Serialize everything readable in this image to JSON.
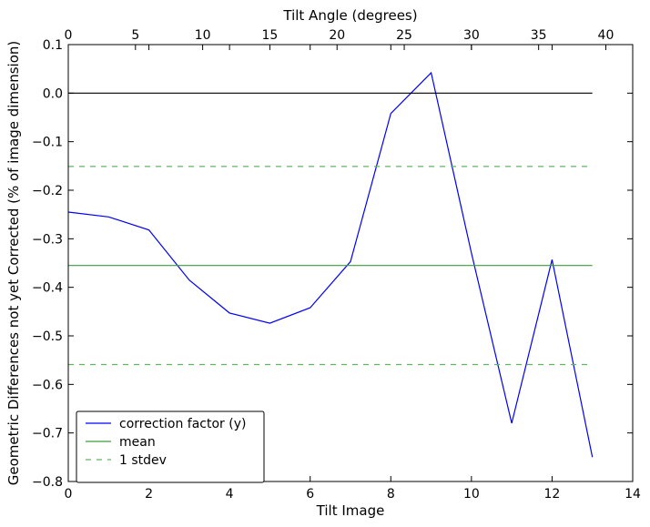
{
  "chart_data": {
    "type": "line",
    "xlabel": "Tilt Image",
    "ylabel": "Geometric Differences not yet Corrected (% of image dimension)",
    "x2label": "Tilt Angle (degrees)",
    "xlim": [
      0,
      14
    ],
    "ylim": [
      -0.8,
      0.1
    ],
    "x2lim": [
      0,
      42
    ],
    "xticks": [
      "0",
      "2",
      "4",
      "6",
      "8",
      "10",
      "12",
      "14"
    ],
    "yticks": [
      "0.1",
      "0.0",
      "−0.1",
      "−0.2",
      "−0.3",
      "−0.4",
      "−0.5",
      "−0.6",
      "−0.7",
      "−0.8"
    ],
    "x2ticks": [
      "0",
      "5",
      "10",
      "15",
      "20",
      "25",
      "30",
      "35",
      "40"
    ],
    "grid": false,
    "legend_position": "lower-left",
    "series": [
      {
        "name": "correction factor (y)",
        "color": "#0000ff",
        "style": "solid",
        "x": [
          0,
          1,
          2,
          3,
          4,
          5,
          6,
          7,
          8,
          9,
          10,
          11,
          12,
          13
        ],
        "y": [
          -0.245,
          -0.255,
          -0.282,
          -0.385,
          -0.453,
          -0.474,
          -0.442,
          -0.347,
          -0.042,
          0.042,
          -0.33,
          -0.68,
          -0.343,
          -0.75
        ]
      },
      {
        "name": "mean",
        "color": "#3a9f3a",
        "style": "solid",
        "x": [
          0,
          13
        ],
        "y": [
          -0.355,
          -0.355
        ]
      },
      {
        "name": "1 stdev",
        "color": "#62b462",
        "style": "dashed",
        "x": [
          0,
          13
        ],
        "y": [
          -0.151,
          -0.151
        ]
      },
      {
        "name": "",
        "color": "#62b462",
        "style": "dashed",
        "x": [
          0,
          13
        ],
        "y": [
          -0.559,
          -0.559
        ]
      },
      {
        "name": "",
        "color": "#000000",
        "style": "solid",
        "x": [
          0,
          13
        ],
        "y": [
          0.0,
          0.0
        ]
      }
    ],
    "legend": [
      "correction factor (y)",
      "mean",
      "1 stdev"
    ]
  }
}
